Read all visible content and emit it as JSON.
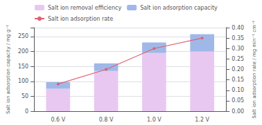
{
  "chart_data": {
    "type": "bar",
    "categories": [
      "0.6 V",
      "0.8 V",
      "1.0 V",
      "1.2 V"
    ],
    "ylabel": "Salt ion adsorption capacity / mg g⁻¹",
    "y2label": "Salt ion adsorption rate / mg min⁻¹ cm⁻²",
    "ylim": [
      0,
      280
    ],
    "yticks": [
      0,
      50,
      100,
      150,
      200,
      250
    ],
    "y2lim": [
      0.0,
      0.4
    ],
    "y2ticks": [
      {
        "value": 0.0,
        "label": "0.00"
      },
      {
        "value": 0.05,
        "label": "0.05"
      },
      {
        "value": 0.1,
        "label": "0.10"
      },
      {
        "value": 0.15,
        "label": "0.15"
      },
      {
        "value": 0.2,
        "label": "0.20"
      },
      {
        "value": 0.25,
        "label": "0.25"
      },
      {
        "value": 0.3,
        "label": "0.30"
      },
      {
        "value": 0.35,
        "label": "0.35"
      },
      {
        "value": 0.4,
        "label": "0.40"
      }
    ],
    "grid": true,
    "legend": "upper left",
    "stacked": true,
    "series": [
      {
        "name": "Salt ion removal efficiency",
        "color": "#e8c8f0",
        "values": [
          75,
          135,
          195,
          200
        ]
      },
      {
        "name": "Salt ion adsorption capacity",
        "color": "#a0b8e8",
        "values": [
          22,
          25,
          35,
          58
        ]
      },
      {
        "name": "Salt ion adsorption rate",
        "type": "line",
        "axis": "y2",
        "color": "#e06070",
        "marker": "circle",
        "line_style": "solid",
        "values": [
          0.13,
          0.2,
          0.3,
          0.35
        ]
      }
    ]
  }
}
